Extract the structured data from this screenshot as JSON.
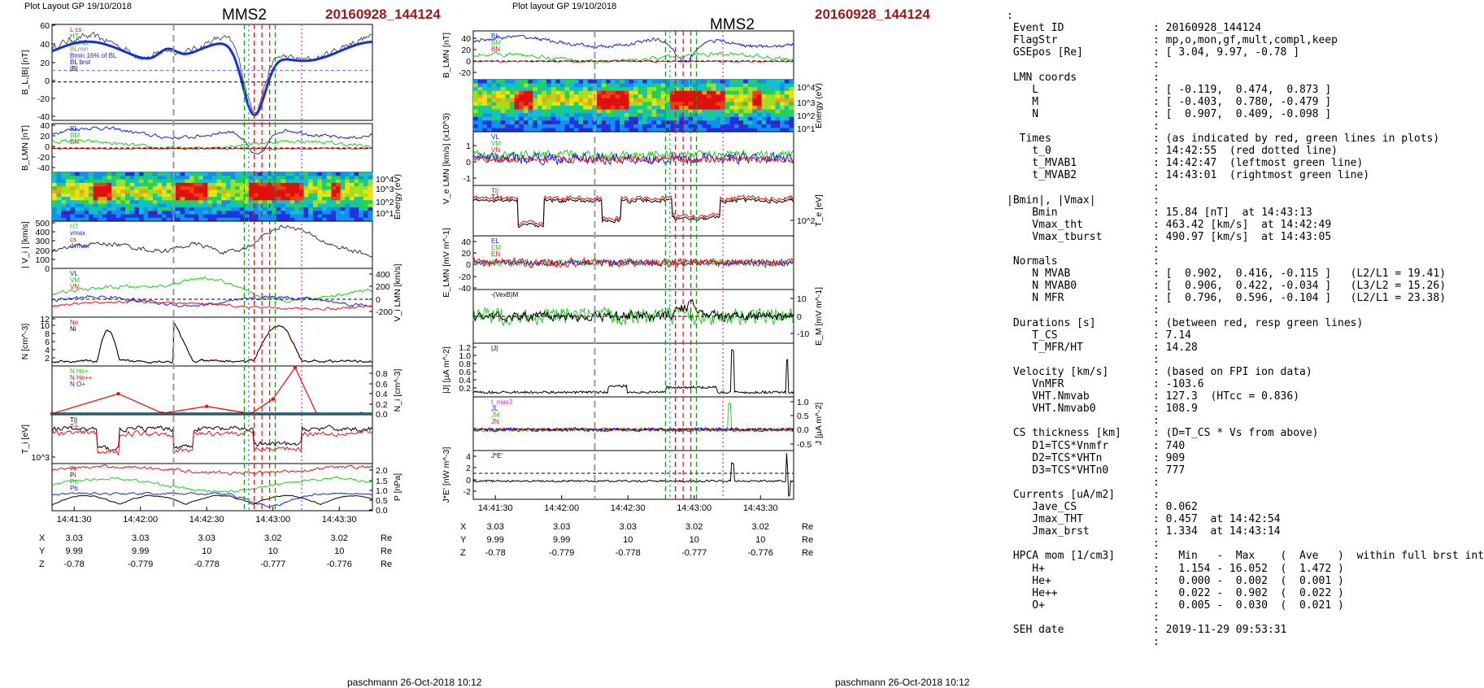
{
  "left_header": {
    "layout_label": "Plot Layout GP 19/10/2018",
    "spacecraft": "MMS2",
    "event": "20160928_144124",
    "footer": "paschmann 26-Oct-2018 10:12"
  },
  "right_header": {
    "layout_label": "Plot layout GP 19/10/2018",
    "spacecraft": "MMS2",
    "event": "20160928_144124",
    "footer": "paschmann 26-Oct-2018 10:12"
  },
  "time_ticks": [
    "14:41:30",
    "14:42:00",
    "14:42:30",
    "14:43:00",
    "14:43:30"
  ],
  "position_table": {
    "rows": [
      {
        "label": "X",
        "values": [
          "3.03",
          "3.03",
          "3.03",
          "3.02",
          "3.02"
        ],
        "unit": "Re"
      },
      {
        "label": "Y",
        "values": [
          "9.99",
          "9.99",
          "10",
          "10",
          "10"
        ],
        "unit": "Re"
      },
      {
        "label": "Z",
        "values": [
          "-0.78",
          "-0.779",
          "-0.778",
          "-0.777",
          "-0.776"
        ],
        "unit": "Re"
      }
    ]
  },
  "markers": {
    "t_MVAB1": "14:42:47",
    "t_0": "14:42:55",
    "t_MVAB2": "14:43:01",
    "red_dotted": "14:42:55",
    "vmax": "14:42:49",
    "magenta": "14:43:13",
    "gray": "14:42:15",
    "colors": {
      "red": "#e01010",
      "green": "#10a010",
      "cyan": "#20b0c0",
      "magenta": "#e020e0",
      "gray": "#9a9a9a"
    }
  },
  "colors": {
    "black": "#000000",
    "red": "#ee1111",
    "green": "#22cc22",
    "blue": "#1122ee",
    "event_red": "#a01818"
  },
  "chart_data": [
    {
      "type": "line",
      "panel": "left-B",
      "ylabel": "B_L,|B| [nT]",
      "ylim": [
        -40,
        60
      ],
      "ticks": [
        "60",
        "40",
        "20",
        "0",
        "-20",
        "-40"
      ],
      "legend": [
        "L cs",
        "HT",
        "MVAB",
        "BLmin",
        "Bmin 16% of BL",
        "BL brst",
        "|B|"
      ]
    },
    {
      "type": "line",
      "panel": "left-BLMN",
      "ylabel": "B_LMN [nT]",
      "ylim": [
        -40,
        40
      ],
      "ticks": [
        "40",
        "20",
        "0",
        "-20",
        "-40"
      ],
      "legend": [
        "BL",
        "BM",
        "BN"
      ]
    },
    {
      "type": "heatmap",
      "panel": "left-spectrogram",
      "ylabel": "Energy (eV)",
      "ticks": [
        "10^4",
        "10^3",
        "10^2",
        "10^1"
      ]
    },
    {
      "type": "line",
      "panel": "left-Vi",
      "ylabel": "| V_i | [km/s]",
      "ylim": [
        0,
        500
      ],
      "ticks": [
        "500",
        "400",
        "300",
        "200",
        "100",
        "0"
      ],
      "legend": [
        "HT",
        "vmax",
        "cs",
        "dvmax"
      ]
    },
    {
      "type": "line",
      "panel": "left-ViLMN",
      "ylabel": "V_i LMN [km/s]",
      "ylim": [
        -200,
        400
      ],
      "ticks": [
        "400",
        "200",
        "0",
        "-200"
      ],
      "legend": [
        "VL",
        "VM",
        "VN"
      ]
    },
    {
      "type": "line",
      "panel": "left-N",
      "ylabel": "N [cm^-3]",
      "ylim": [
        0,
        12
      ],
      "ticks": [
        "12",
        "10",
        "8",
        "6",
        "4",
        "2"
      ],
      "legend": [
        "Ne",
        "Ni"
      ]
    },
    {
      "type": "line",
      "panel": "left-Nhpca",
      "ylabel": "N_i [cm^-3]",
      "ylim": [
        0,
        0.9
      ],
      "ticks": [
        "0.8",
        "0.6",
        "0.4",
        "0.2",
        "0.0"
      ],
      "legend": [
        "N He+",
        "N He++",
        "N O+"
      ],
      "series": [
        {
          "name": "N He++",
          "x": [
            "14:41:20",
            "14:41:50",
            "14:42:10",
            "14:42:30",
            "14:42:50",
            "14:43:00",
            "14:43:10",
            "14:43:20",
            "14:43:40"
          ],
          "values": [
            0.02,
            0.4,
            0.03,
            0.16,
            0.02,
            0.3,
            0.9,
            0.0,
            0.02
          ]
        }
      ]
    },
    {
      "type": "line",
      "panel": "left-Ti",
      "ylabel": "T_i [eV]",
      "ticks": [
        "10^3"
      ],
      "legend": [
        "T||",
        "T┴"
      ]
    },
    {
      "type": "line",
      "panel": "left-P",
      "ylabel": "P [nPa]",
      "ylim": [
        0,
        2.2
      ],
      "ticks": [
        "2.0",
        "1.5",
        "1.0",
        "0.5",
        "0.0"
      ],
      "legend": [
        "Pt",
        "Pi",
        "Pe",
        "Pb"
      ]
    },
    {
      "type": "line",
      "panel": "right-BLMN",
      "ylabel": "B_LMN [nT]",
      "ylim": [
        -30,
        50
      ],
      "ticks": [
        "40",
        "20",
        "0",
        "-20"
      ],
      "legend": [
        "BL",
        "BM",
        "BN"
      ]
    },
    {
      "type": "heatmap",
      "panel": "right-spectrogram",
      "ylabel": "Energy (eV)",
      "ticks": [
        "10^4",
        "10^3",
        "10^2",
        "10^1"
      ]
    },
    {
      "type": "line",
      "panel": "right-VeLMN",
      "ylabel": "V_e LMN [km/s] (x10^3)",
      "ylim": [
        -1.4,
        1.4
      ],
      "ticks": [
        "1",
        "0",
        "-1"
      ],
      "legend": [
        "VL",
        "VM",
        "VN"
      ]
    },
    {
      "type": "line",
      "panel": "right-Te",
      "ylabel": "T_e [eV]",
      "ticks": [
        "10^2"
      ],
      "legend": [
        "T||",
        "T┴"
      ]
    },
    {
      "type": "line",
      "panel": "right-ELMN",
      "ylabel": "E_LMN [mV m^-1]",
      "ylim": [
        -45,
        45
      ],
      "ticks": [
        "40",
        "20",
        "0",
        "-20",
        "-40"
      ],
      "legend": [
        "EL",
        "EM",
        "EN"
      ]
    },
    {
      "type": "line",
      "panel": "right-EM",
      "ylabel": "E_M [mV m^-1]",
      "ylim": [
        -15,
        15
      ],
      "ticks": [
        "10",
        "0",
        "-10"
      ],
      "legend": [
        "-(VexB)M"
      ]
    },
    {
      "type": "line",
      "panel": "right-J",
      "ylabel": "|J| [µA m^-2]",
      "ylim": [
        0,
        1.3
      ],
      "ticks": [
        "1.2",
        "1.0",
        "0.8",
        "0.6",
        "0.4",
        "0.2"
      ],
      "legend": [
        "|J|"
      ]
    },
    {
      "type": "line",
      "panel": "right-JLMN",
      "ylabel": "J [µA m^-2]",
      "ylim": [
        -0.7,
        1.1
      ],
      "ticks": [
        "1.0",
        "0.5",
        "0.0",
        "-0.5"
      ],
      "legend": [
        "t_max3",
        "JL",
        "JM",
        "JN"
      ]
    },
    {
      "type": "line",
      "panel": "right-JE",
      "ylabel": "J*E' [nW m^-3]",
      "ylim": [
        -3,
        5
      ],
      "ticks": [
        "4",
        "2",
        "0",
        "-2"
      ],
      "legend": [
        "J*E'"
      ]
    }
  ],
  "params": [
    ":",
    " Event ID              : 20160928_144124",
    " FlagStr               : mp,o,mon,gf,mult,compl,keep",
    " GSEpos [Re]           : [ 3.04, 9.97, -0.78 ]",
    "                       :",
    " LMN coords            :",
    "    L                  : [ -0.119,  0.474,  0.873 ]",
    "    M                  : [ -0.403,  0.780, -0.479 ]",
    "    N                  : [  0.907,  0.409, -0.098 ]",
    "                       :",
    "  Times                : (as indicated by red, green lines in plots)",
    "    t_0                : 14:42:55  (red dotted line)",
    "    t_MVAB1            : 14:42:47  (leftmost green line)",
    "    t_MVAB2            : 14:43:01  (rightmost green line)",
    "                       :",
    "|Bmin|, |Vmax|         :",
    "    Bmin               : 15.84 [nT]  at 14:43:13",
    "    Vmax_tht           : 463.42 [km/s]  at 14:42:49",
    "    Vmax_tburst        : 490.97 [km/s]  at 14:43:05",
    "                       :",
    " Normals               :",
    "    N MVAB             : [  0.902,  0.416, -0.115 ]   (L2/L1 = 19.41)",
    "    N MVAB0            : [  0.906,  0.422, -0.034 ]   (L3/L2 = 15.26)",
    "    N MFR              : [  0.796,  0.596, -0.104 ]   (L2/L1 = 23.38)",
    "                       :",
    " Durations [s]         : (between red, resp green lines)",
    "    T_CS               : 7.14",
    "    T_MFR/HT           : 14.28",
    "                       :",
    " Velocity [km/s]       : (based on FPI ion data)",
    "    VnMFR              : -103.6",
    "    VHT.Nmvab          : 127.3  (HTcc = 0.836)",
    "    VHT.Nmvab0         : 108.9",
    "                       :",
    " CS thickness [km]     : (D=T_CS * Vs from above)",
    "    D1=TCS*Vnmfr       : 740",
    "    D2=TCS*VHTn        : 909",
    "    D3=TCS*VHTn0       : 777",
    "                       :",
    " Currents [uA/m2]      :",
    "    Jave_CS            : 0.062",
    "    Jmax_THT           : 0.457  at 14:42:54",
    "    Jmax_brst          : 1.334  at 14:43:14",
    "                       :",
    " HPCA mom [1/cm3]      :   Min   -  Max    (  Ave   )  within full brst int",
    "    H+                 :   1.154 - 16.052  (  1.472 )",
    "    He+                :   0.000 -  0.002  (  0.001 )",
    "    He++               :   0.022 -  0.902  (  0.022 )",
    "    O+                 :   0.005 -  0.030  (  0.021 )",
    "                       :",
    " SEH date              : 2019-11-29 09:53:31",
    "                       :"
  ]
}
